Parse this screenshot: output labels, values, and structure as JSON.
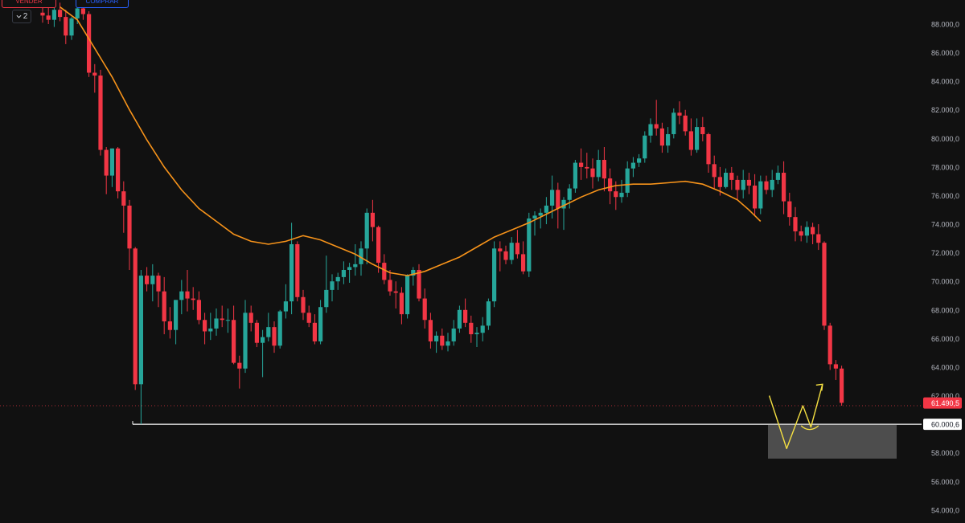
{
  "controls": {
    "sell_label": "VENDER",
    "buy_label": "COMPRAR",
    "quantity": "2"
  },
  "colors": {
    "background": "#111111",
    "up": "#26a69a",
    "down": "#f23645",
    "moving_average": "#f7931a",
    "annotation": "#f5e042",
    "support_line": "#ffffff"
  },
  "chart_data": {
    "type": "candlestick",
    "title": "",
    "xlabel": "",
    "ylabel": "",
    "ylim": [
      53500,
      89500
    ],
    "y_ticks": [
      88000,
      86000,
      84000,
      82000,
      80000,
      78000,
      76000,
      74000,
      72000,
      70000,
      68000,
      66000,
      64000,
      62000,
      58000,
      56000,
      54000
    ],
    "y_tick_labels": [
      "88.000,0",
      "86.000,0",
      "84.000,0",
      "82.000,0",
      "80.000,0",
      "78.000,0",
      "76.000,0",
      "74.000,0",
      "72.000,0",
      "70.000,0",
      "68.000,0",
      "66.000,0",
      "64.000,0",
      "62.000,0",
      "58.000,0",
      "56.000,0",
      "54.000,0"
    ],
    "current_price": 61490.5,
    "current_price_label": "61.490,5",
    "support_level": 60000.6,
    "support_label": "60.000,6",
    "support_zone": [
      57600,
      59950
    ],
    "grid": false,
    "candles_ohlc": [
      [
        88800,
        89600,
        88100,
        88600
      ],
      [
        88600,
        89200,
        88000,
        88300
      ],
      [
        88300,
        89300,
        87800,
        89000
      ],
      [
        89000,
        89500,
        88200,
        88500
      ],
      [
        88500,
        89000,
        86600,
        87200
      ],
      [
        87200,
        88500,
        86900,
        88400
      ],
      [
        88400,
        89300,
        88000,
        89100
      ],
      [
        89100,
        89500,
        88300,
        88700
      ],
      [
        88700,
        88900,
        84300,
        84600
      ],
      [
        84600,
        85200,
        83200,
        84400
      ],
      [
        84400,
        84800,
        78800,
        79200
      ],
      [
        79200,
        79400,
        76100,
        77400
      ],
      [
        77400,
        79300,
        76600,
        79300
      ],
      [
        79300,
        79400,
        75800,
        76300
      ],
      [
        76300,
        77000,
        73400,
        75300
      ],
      [
        75300,
        75700,
        70800,
        72300
      ],
      [
        72300,
        72400,
        62400,
        62800
      ],
      [
        62800,
        70800,
        60000,
        70400
      ],
      [
        70400,
        71000,
        69300,
        69800
      ],
      [
        69800,
        71200,
        68600,
        70400
      ],
      [
        70400,
        70600,
        68200,
        69300
      ],
      [
        69300,
        70300,
        66300,
        67200
      ],
      [
        67200,
        68200,
        66000,
        66600
      ],
      [
        66600,
        68700,
        65600,
        68700
      ],
      [
        68700,
        70100,
        67700,
        69300
      ],
      [
        69300,
        70800,
        67900,
        68800
      ],
      [
        68800,
        69600,
        68000,
        68700
      ],
      [
        68700,
        69300,
        67000,
        67300
      ],
      [
        67300,
        67800,
        65600,
        66500
      ],
      [
        66500,
        67800,
        65900,
        66700
      ],
      [
        66700,
        68100,
        66200,
        67400
      ],
      [
        67400,
        68300,
        66800,
        67300
      ],
      [
        67300,
        68100,
        66400,
        67300
      ],
      [
        67300,
        68300,
        64200,
        64300
      ],
      [
        64300,
        64800,
        62500,
        63900
      ],
      [
        63900,
        68700,
        63600,
        67800
      ],
      [
        67800,
        68300,
        66500,
        67100
      ],
      [
        67100,
        67300,
        65400,
        65700
      ],
      [
        65700,
        66600,
        63300,
        66100
      ],
      [
        66100,
        67800,
        65800,
        66800
      ],
      [
        66800,
        67200,
        65000,
        65500
      ],
      [
        65500,
        68000,
        65300,
        67900
      ],
      [
        67900,
        69800,
        67400,
        68600
      ],
      [
        68600,
        74100,
        67700,
        72600
      ],
      [
        72600,
        72800,
        68600,
        68900
      ],
      [
        68900,
        69400,
        67300,
        67800
      ],
      [
        67800,
        68300,
        66800,
        67100
      ],
      [
        67100,
        67700,
        65600,
        65800
      ],
      [
        65800,
        68700,
        65600,
        68200
      ],
      [
        68200,
        71800,
        67800,
        69400
      ],
      [
        69400,
        70500,
        68600,
        70000
      ],
      [
        70000,
        70600,
        69400,
        70300
      ],
      [
        70300,
        71400,
        69800,
        70800
      ],
      [
        70800,
        71300,
        69900,
        71000
      ],
      [
        71000,
        72600,
        70400,
        71200
      ],
      [
        71200,
        72800,
        70400,
        72300
      ],
      [
        72300,
        75100,
        71200,
        74800
      ],
      [
        74800,
        75700,
        72800,
        73800
      ],
      [
        73800,
        73900,
        70600,
        71300
      ],
      [
        71300,
        71900,
        69800,
        70100
      ],
      [
        70100,
        70800,
        69000,
        69300
      ],
      [
        69300,
        70000,
        68100,
        69200
      ],
      [
        69200,
        69600,
        67000,
        67700
      ],
      [
        67700,
        70500,
        67400,
        70400
      ],
      [
        70400,
        71000,
        69700,
        70800
      ],
      [
        70800,
        71200,
        68600,
        68800
      ],
      [
        68800,
        69500,
        66700,
        67300
      ],
      [
        67300,
        67800,
        65300,
        65800
      ],
      [
        65800,
        66500,
        65000,
        66200
      ],
      [
        66200,
        66700,
        65200,
        65500
      ],
      [
        65500,
        66400,
        65100,
        65800
      ],
      [
        65800,
        67300,
        65500,
        66700
      ],
      [
        66700,
        68300,
        66400,
        68000
      ],
      [
        68000,
        68800,
        66800,
        67100
      ],
      [
        67100,
        67600,
        65700,
        66300
      ],
      [
        66300,
        66800,
        65400,
        66400
      ],
      [
        66400,
        67500,
        65800,
        66900
      ],
      [
        66900,
        68800,
        66600,
        68600
      ],
      [
        68600,
        72800,
        68200,
        72300
      ],
      [
        72300,
        72800,
        70700,
        72100
      ],
      [
        72100,
        72500,
        71200,
        71500
      ],
      [
        71500,
        73100,
        71200,
        72700
      ],
      [
        72700,
        73600,
        71600,
        71900
      ],
      [
        71900,
        72800,
        70500,
        70700
      ],
      [
        70700,
        74800,
        70300,
        74400
      ],
      [
        74400,
        74900,
        73200,
        74600
      ],
      [
        74600,
        75100,
        73700,
        74800
      ],
      [
        74800,
        75900,
        74000,
        75300
      ],
      [
        75300,
        77400,
        74400,
        76400
      ],
      [
        76400,
        76900,
        73700,
        75100
      ],
      [
        75100,
        75900,
        73600,
        75700
      ],
      [
        75700,
        76800,
        75100,
        76500
      ],
      [
        76500,
        78500,
        76200,
        78300
      ],
      [
        78300,
        79300,
        77100,
        78000
      ],
      [
        78000,
        79000,
        77200,
        77900
      ],
      [
        77900,
        78600,
        76500,
        77300
      ],
      [
        77300,
        79200,
        77000,
        78500
      ],
      [
        78500,
        79400,
        76300,
        77200
      ],
      [
        77200,
        77900,
        75400,
        76300
      ],
      [
        76300,
        77000,
        75000,
        75900
      ],
      [
        75900,
        77100,
        75500,
        76200
      ],
      [
        76200,
        78400,
        75900,
        77900
      ],
      [
        77900,
        78700,
        77300,
        78300
      ],
      [
        78300,
        78900,
        78000,
        78600
      ],
      [
        78600,
        80500,
        78300,
        80200
      ],
      [
        80200,
        81400,
        79700,
        81000
      ],
      [
        81000,
        82700,
        80200,
        80700
      ],
      [
        80700,
        81100,
        79000,
        79500
      ],
      [
        79500,
        80800,
        79000,
        80300
      ],
      [
        80300,
        82100,
        80000,
        81800
      ],
      [
        81800,
        82600,
        81000,
        81600
      ],
      [
        81600,
        82000,
        80200,
        80500
      ],
      [
        80500,
        81400,
        78800,
        79200
      ],
      [
        79200,
        81400,
        79000,
        80800
      ],
      [
        80800,
        81500,
        79800,
        80300
      ],
      [
        80300,
        80400,
        77600,
        78200
      ],
      [
        78200,
        78800,
        76500,
        77300
      ],
      [
        77300,
        78000,
        76000,
        76600
      ],
      [
        76600,
        77900,
        76500,
        77600
      ],
      [
        77600,
        78000,
        76400,
        77100
      ],
      [
        77100,
        77400,
        75700,
        76400
      ],
      [
        76400,
        77800,
        75800,
        77100
      ],
      [
        77100,
        77600,
        76100,
        76700
      ],
      [
        76700,
        77500,
        74600,
        75100
      ],
      [
        75100,
        77400,
        74700,
        77000
      ],
      [
        77000,
        77400,
        76100,
        76400
      ],
      [
        76400,
        77800,
        75900,
        77100
      ],
      [
        77100,
        78100,
        76800,
        77600
      ],
      [
        77600,
        78400,
        74700,
        75600
      ],
      [
        75600,
        76200,
        73900,
        74500
      ],
      [
        74500,
        75200,
        72800,
        73500
      ],
      [
        73500,
        73900,
        72800,
        73200
      ],
      [
        73200,
        74200,
        72700,
        73800
      ],
      [
        73800,
        74100,
        72600,
        73300
      ],
      [
        73300,
        74000,
        72200,
        72700
      ],
      [
        72700,
        72800,
        66600,
        66900
      ],
      [
        66900,
        67100,
        63800,
        64200
      ],
      [
        64200,
        64500,
        63100,
        63900
      ],
      [
        63900,
        64100,
        61300,
        61500
      ]
    ],
    "series": [
      {
        "name": "",
        "type": "line",
        "values": [
          [
            3,
            89200
          ],
          [
            6,
            88300
          ],
          [
            9,
            86300
          ],
          [
            12,
            84300
          ],
          [
            15,
            82000
          ],
          [
            18,
            79900
          ],
          [
            21,
            78000
          ],
          [
            24,
            76400
          ],
          [
            27,
            75100
          ],
          [
            30,
            74200
          ],
          [
            33,
            73300
          ],
          [
            36,
            72800
          ],
          [
            39,
            72600
          ],
          [
            42,
            72800
          ],
          [
            45,
            73200
          ],
          [
            48,
            72900
          ],
          [
            51,
            72400
          ],
          [
            54,
            71900
          ],
          [
            57,
            71200
          ],
          [
            60,
            70600
          ],
          [
            63,
            70400
          ],
          [
            66,
            70700
          ],
          [
            69,
            71200
          ],
          [
            72,
            71700
          ],
          [
            75,
            72400
          ],
          [
            78,
            73100
          ],
          [
            81,
            73600
          ],
          [
            84,
            74100
          ],
          [
            87,
            74700
          ],
          [
            90,
            75300
          ],
          [
            93,
            75900
          ],
          [
            96,
            76400
          ],
          [
            99,
            76700
          ],
          [
            102,
            76800
          ],
          [
            105,
            76800
          ],
          [
            108,
            76900
          ],
          [
            111,
            77000
          ],
          [
            114,
            76800
          ],
          [
            117,
            76300
          ],
          [
            120,
            75700
          ],
          [
            122,
            75000
          ],
          [
            124,
            74200
          ]
        ]
      }
    ],
    "annotation_path": [
      [
        125.5,
        62000
      ],
      [
        128.5,
        58300
      ],
      [
        131.3,
        61300
      ],
      [
        132.7,
        59800
      ],
      [
        134.7,
        62800
      ]
    ],
    "annotation_loop": [
      [
        131.0,
        59900
      ],
      [
        132.0,
        59500
      ],
      [
        133.2,
        59600
      ],
      [
        134.0,
        59900
      ]
    ]
  }
}
